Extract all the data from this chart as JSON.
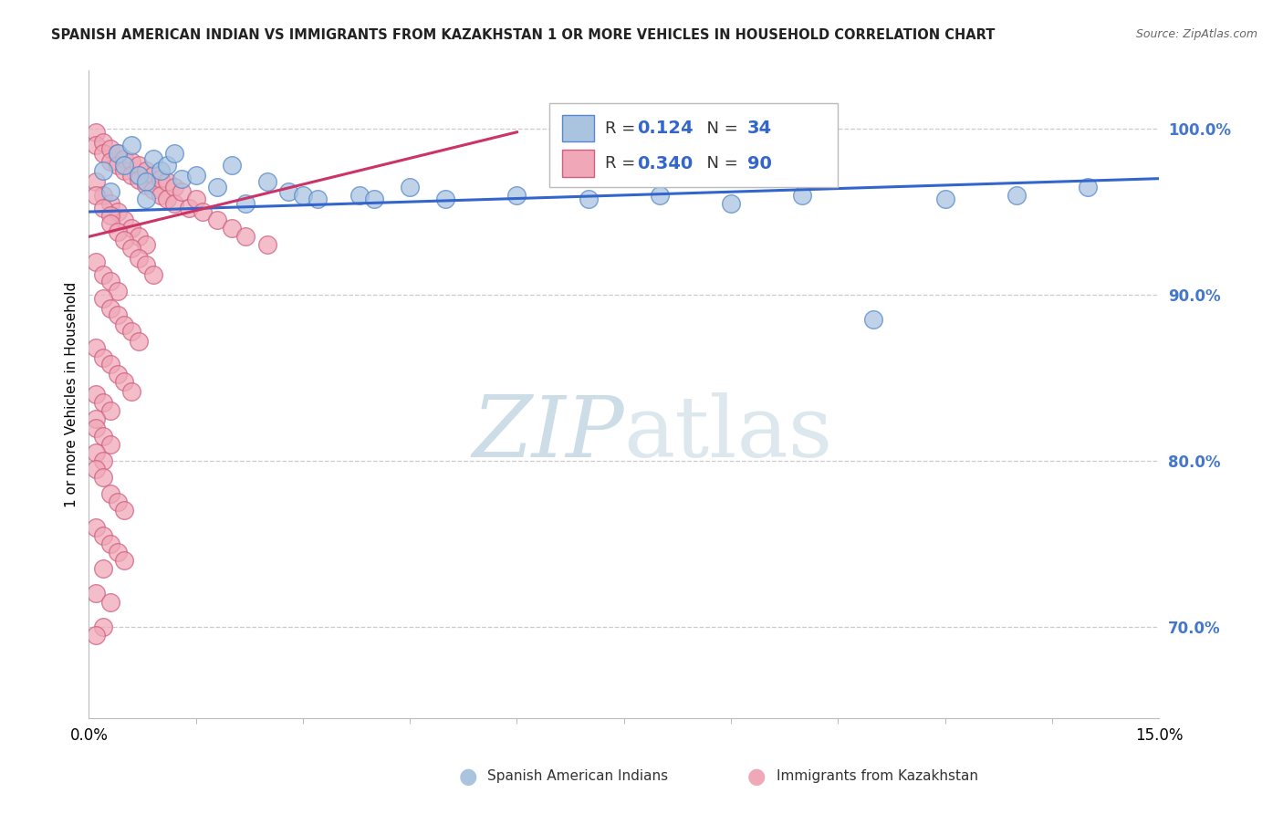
{
  "title": "SPANISH AMERICAN INDIAN VS IMMIGRANTS FROM KAZAKHSTAN 1 OR MORE VEHICLES IN HOUSEHOLD CORRELATION CHART",
  "source": "Source: ZipAtlas.com",
  "ylabel": "1 or more Vehicles in Household",
  "ytick_values": [
    0.7,
    0.8,
    0.9,
    1.0
  ],
  "xmin": 0.0,
  "xmax": 0.15,
  "ymin": 0.645,
  "ymax": 1.035,
  "r_blue": 0.124,
  "n_blue": 34,
  "r_pink": 0.34,
  "n_pink": 90,
  "blue_color": "#aac4e0",
  "blue_edge_color": "#5588cc",
  "pink_color": "#f0a8b8",
  "pink_edge_color": "#d06080",
  "blue_line_color": "#3366cc",
  "pink_line_color": "#cc3366",
  "right_axis_color": "#4477cc",
  "watermark_color": "#ccdde8",
  "legend_box_color": "#bbbbbb",
  "blue_x": [
    0.002,
    0.004,
    0.005,
    0.006,
    0.007,
    0.008,
    0.009,
    0.01,
    0.011,
    0.012,
    0.013,
    0.015,
    0.018,
    0.02,
    0.022,
    0.025,
    0.028,
    0.03,
    0.032,
    0.038,
    0.04,
    0.045,
    0.05,
    0.06,
    0.07,
    0.08,
    0.09,
    0.1,
    0.11,
    0.12,
    0.13,
    0.14,
    0.003,
    0.008
  ],
  "blue_y": [
    0.975,
    0.985,
    0.978,
    0.99,
    0.972,
    0.968,
    0.982,
    0.975,
    0.978,
    0.985,
    0.97,
    0.972,
    0.965,
    0.978,
    0.955,
    0.968,
    0.962,
    0.96,
    0.958,
    0.96,
    0.958,
    0.965,
    0.958,
    0.96,
    0.958,
    0.96,
    0.955,
    0.96,
    0.885,
    0.958,
    0.96,
    0.965,
    0.962,
    0.958
  ],
  "pink_x": [
    0.001,
    0.001,
    0.002,
    0.002,
    0.003,
    0.003,
    0.004,
    0.004,
    0.005,
    0.005,
    0.006,
    0.006,
    0.007,
    0.007,
    0.008,
    0.008,
    0.009,
    0.009,
    0.01,
    0.01,
    0.011,
    0.011,
    0.012,
    0.012,
    0.013,
    0.014,
    0.015,
    0.016,
    0.018,
    0.02,
    0.022,
    0.025,
    0.001,
    0.002,
    0.003,
    0.004,
    0.005,
    0.006,
    0.007,
    0.008,
    0.001,
    0.002,
    0.003,
    0.003,
    0.004,
    0.005,
    0.006,
    0.007,
    0.008,
    0.009,
    0.001,
    0.002,
    0.003,
    0.004,
    0.002,
    0.003,
    0.004,
    0.005,
    0.006,
    0.007,
    0.001,
    0.002,
    0.003,
    0.004,
    0.005,
    0.006,
    0.001,
    0.002,
    0.003,
    0.001,
    0.001,
    0.002,
    0.003,
    0.001,
    0.002,
    0.001,
    0.002,
    0.003,
    0.004,
    0.005,
    0.001,
    0.002,
    0.003,
    0.004,
    0.005,
    0.002,
    0.001,
    0.003,
    0.002,
    0.001
  ],
  "pink_y": [
    0.998,
    0.99,
    0.992,
    0.985,
    0.988,
    0.98,
    0.985,
    0.978,
    0.982,
    0.975,
    0.98,
    0.972,
    0.978,
    0.969,
    0.975,
    0.966,
    0.972,
    0.963,
    0.97,
    0.96,
    0.968,
    0.958,
    0.965,
    0.955,
    0.962,
    0.952,
    0.958,
    0.95,
    0.945,
    0.94,
    0.935,
    0.93,
    0.968,
    0.96,
    0.955,
    0.95,
    0.945,
    0.94,
    0.935,
    0.93,
    0.96,
    0.952,
    0.948,
    0.943,
    0.938,
    0.933,
    0.928,
    0.922,
    0.918,
    0.912,
    0.92,
    0.912,
    0.908,
    0.902,
    0.898,
    0.892,
    0.888,
    0.882,
    0.878,
    0.872,
    0.868,
    0.862,
    0.858,
    0.852,
    0.848,
    0.842,
    0.84,
    0.835,
    0.83,
    0.825,
    0.82,
    0.815,
    0.81,
    0.805,
    0.8,
    0.795,
    0.79,
    0.78,
    0.775,
    0.77,
    0.76,
    0.755,
    0.75,
    0.745,
    0.74,
    0.735,
    0.72,
    0.715,
    0.7,
    0.695
  ],
  "blue_line_x": [
    0.0,
    0.15
  ],
  "blue_line_y": [
    0.95,
    0.97
  ],
  "pink_line_x": [
    0.0,
    0.06
  ],
  "pink_line_y": [
    0.935,
    0.998
  ]
}
